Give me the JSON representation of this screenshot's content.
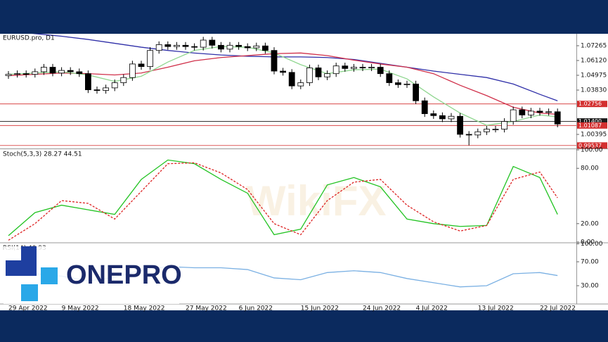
{
  "symbol": "EURUSD.pro, D1",
  "logo": "ONEPRO",
  "watermark": "WikiFX",
  "chart_data": [
    {
      "type": "candlestick",
      "title": "EURUSD.pro, D1",
      "categories": [
        "29 Apr 2022",
        null,
        null,
        null,
        null,
        null,
        "9 May 2022",
        null,
        null,
        null,
        null,
        null,
        null,
        "18 May 2022",
        null,
        null,
        null,
        null,
        null,
        null,
        "27 May 2022",
        null,
        null,
        null,
        null,
        null,
        "6 Jun 2022",
        null,
        null,
        null,
        null,
        null,
        null,
        "15 Jun 2022",
        null,
        null,
        null,
        null,
        null,
        null,
        "24 Jun 2022",
        null,
        null,
        null,
        null,
        null,
        "4 Jul 2022",
        null,
        null,
        null,
        null,
        null,
        null,
        "13 Jul 2022",
        null,
        null,
        null,
        null,
        null,
        null,
        "22 Jul 2022",
        null,
        null
      ],
      "open": [
        1.0495,
        1.0505,
        1.051,
        1.0505,
        1.0525,
        1.056,
        1.0515,
        1.0535,
        1.0525,
        1.051,
        1.0385,
        1.038,
        1.04,
        1.044,
        1.048,
        1.0585,
        1.0565,
        1.069,
        1.0735,
        1.072,
        1.073,
        1.072,
        1.0715,
        1.077,
        1.073,
        1.07,
        1.073,
        1.072,
        1.071,
        1.0725,
        1.069,
        1.053,
        1.052,
        1.0415,
        1.044,
        1.0555,
        1.0485,
        1.051,
        1.057,
        1.055,
        1.056,
        1.0555,
        1.056,
        1.051,
        1.044,
        1.0425,
        1.043,
        1.03,
        1.02,
        1.0185,
        1.016,
        1.018,
        1.004,
        1.0035,
        1.006,
        1.008,
        1.008,
        1.014,
        1.023,
        1.019,
        1.022,
        1.021,
        1.0215
      ],
      "high": [
        1.053,
        1.0535,
        1.0535,
        1.055,
        1.0585,
        1.0585,
        1.056,
        1.056,
        1.055,
        1.0535,
        1.041,
        1.0425,
        1.0465,
        1.0505,
        1.061,
        1.061,
        1.0715,
        1.076,
        1.076,
        1.0755,
        1.0755,
        1.0745,
        1.0795,
        1.0795,
        1.0755,
        1.0755,
        1.0755,
        1.0745,
        1.075,
        1.075,
        1.0715,
        1.0555,
        1.0545,
        1.0465,
        1.058,
        1.058,
        1.0535,
        1.0595,
        1.0595,
        1.0585,
        1.0585,
        1.0585,
        1.0585,
        1.0535,
        1.0465,
        1.0455,
        1.0455,
        1.0325,
        1.0225,
        1.021,
        1.0205,
        1.0205,
        1.0065,
        1.0085,
        1.0105,
        1.0105,
        1.0165,
        1.0255,
        1.0255,
        1.0245,
        1.0245,
        1.024,
        1.024
      ],
      "low": [
        1.047,
        1.048,
        1.048,
        1.048,
        1.05,
        1.049,
        1.049,
        1.05,
        1.0485,
        1.036,
        1.0355,
        1.0355,
        1.0375,
        1.0415,
        1.0455,
        1.054,
        1.054,
        1.0665,
        1.0695,
        1.0695,
        1.0695,
        1.069,
        1.069,
        1.0705,
        1.0675,
        1.0675,
        1.0695,
        1.0685,
        1.0685,
        1.0665,
        1.0505,
        1.0495,
        1.039,
        1.039,
        1.0415,
        1.046,
        1.046,
        1.0485,
        1.0525,
        1.0525,
        1.053,
        1.053,
        1.0485,
        1.0415,
        1.04,
        1.04,
        1.0275,
        1.0175,
        1.016,
        1.0135,
        1.0135,
        1.0015,
        0.9955,
        1.001,
        1.0035,
        1.0055,
        1.0055,
        1.0115,
        1.0165,
        1.0165,
        1.0185,
        1.0185,
        1.0095
      ],
      "close": [
        1.0505,
        1.051,
        1.0505,
        1.0525,
        1.056,
        1.0515,
        1.0535,
        1.0525,
        1.051,
        1.0385,
        1.038,
        1.04,
        1.044,
        1.048,
        1.0585,
        1.0565,
        1.069,
        1.0735,
        1.072,
        1.073,
        1.072,
        1.0715,
        1.077,
        1.073,
        1.07,
        1.073,
        1.072,
        1.071,
        1.0725,
        1.069,
        1.053,
        1.052,
        1.0415,
        1.044,
        1.0555,
        1.0485,
        1.051,
        1.057,
        1.055,
        1.056,
        1.0555,
        1.056,
        1.051,
        1.044,
        1.0425,
        1.043,
        1.03,
        1.02,
        1.0185,
        1.016,
        1.018,
        1.004,
        1.0035,
        1.006,
        1.008,
        1.008,
        1.014,
        1.023,
        1.019,
        1.022,
        1.021,
        1.0215,
        1.012
      ],
      "up_color": "#ffffff",
      "down_color": "#000000",
      "series": [
        {
          "color": "#2f2fa8",
          "x": [
            0,
            3,
            6,
            9,
            12,
            15,
            18,
            21,
            24,
            27,
            30,
            33,
            36,
            39,
            42,
            45,
            48,
            51,
            54,
            57,
            60,
            62
          ],
          "values": [
            1.084,
            1.082,
            1.08,
            1.0775,
            1.0745,
            1.0715,
            1.069,
            1.067,
            1.0655,
            1.0645,
            1.064,
            1.064,
            1.0635,
            1.062,
            1.059,
            1.056,
            1.053,
            1.0505,
            1.048,
            1.043,
            1.035,
            1.03
          ]
        },
        {
          "color": "#d0304a",
          "x": [
            0,
            3,
            6,
            9,
            12,
            15,
            18,
            21,
            24,
            27,
            30,
            33,
            36,
            39,
            42,
            45,
            48,
            51,
            54,
            57,
            60,
            62
          ],
          "values": [
            1.0495,
            1.0505,
            1.0515,
            1.051,
            1.05,
            1.0515,
            1.056,
            1.061,
            1.0635,
            1.065,
            1.0665,
            1.067,
            1.065,
            1.0615,
            1.0585,
            1.056,
            1.051,
            1.042,
            1.034,
            1.025,
            1.0205,
            1.0195
          ]
        },
        {
          "color": "#8fd68f",
          "x": [
            0,
            3,
            6,
            9,
            12,
            15,
            18,
            21,
            24,
            27,
            30,
            33,
            36,
            39,
            42,
            45,
            48,
            51,
            54,
            57,
            60,
            62
          ],
          "values": [
            1.0505,
            1.0515,
            1.0525,
            1.05,
            1.045,
            1.049,
            1.06,
            1.069,
            1.072,
            1.0715,
            1.067,
            1.058,
            1.051,
            1.054,
            1.0545,
            1.047,
            1.033,
            1.0205,
            1.011,
            1.014,
            1.019,
            1.0175
          ]
        }
      ],
      "levels": [
        {
          "value": 1.02756,
          "color": "#d32f2f"
        },
        {
          "value": 1.014,
          "label": "1.01400",
          "color": "#1a1a1a"
        },
        {
          "value": 1.01087,
          "color": "#d32f2f"
        },
        {
          "value": 0.99537,
          "color": "#d32f2f"
        }
      ],
      "ylim": [
        0.9936,
        1.0819
      ],
      "yticks": [
        1.07265,
        {
          "value": 1.0612,
          "label": "1.06120"
        },
        1.04975,
        {
          "value": 1.0383,
          "label": "1.03830"
        },
        1.00395
      ]
    },
    {
      "type": "line",
      "title": "Stoch(5,3,3) 28.27 44.51",
      "series": [
        {
          "color": "#22c322",
          "x": [
            0,
            3,
            6,
            9,
            12,
            15,
            18,
            21,
            24,
            27,
            30,
            33,
            36,
            39,
            42,
            45,
            48,
            51,
            54,
            57,
            60,
            62
          ],
          "values": [
            7,
            32,
            40,
            35,
            30,
            68,
            89,
            85,
            68,
            53,
            8,
            14,
            62,
            70,
            60,
            25,
            20,
            17,
            18,
            82,
            70,
            30
          ]
        },
        {
          "color": "#dd2222",
          "dashed": true,
          "x": [
            0,
            3,
            6,
            9,
            12,
            15,
            18,
            21,
            24,
            27,
            30,
            33,
            36,
            39,
            42,
            45,
            48,
            51,
            54,
            57,
            60,
            62
          ],
          "values": [
            2,
            20,
            45,
            42,
            25,
            55,
            85,
            86,
            75,
            57,
            20,
            8,
            45,
            65,
            68,
            40,
            22,
            12,
            18,
            68,
            76,
            48
          ]
        }
      ],
      "ylim": [
        0,
        100
      ],
      "yticks": [
        {
          "value": 100,
          "label": "100.00"
        },
        {
          "value": 80,
          "label": "80.00"
        },
        {
          "value": 20,
          "label": "20.00"
        },
        {
          "value": 0,
          "label": "0.00"
        }
      ]
    },
    {
      "type": "line",
      "title": "RSI(14) 40.93",
      "series": [
        {
          "color": "#7ab0e3",
          "x": [
            0,
            3,
            6,
            9,
            12,
            15,
            18,
            21,
            24,
            27,
            30,
            33,
            36,
            39,
            42,
            45,
            48,
            51,
            54,
            57,
            60,
            62
          ],
          "values": [
            48,
            50,
            46,
            38,
            44,
            56,
            62,
            60,
            60,
            57,
            43,
            40,
            52,
            55,
            52,
            42,
            35,
            28,
            30,
            50,
            52,
            47
          ]
        }
      ],
      "ylim": [
        0,
        100
      ],
      "yticks": [
        {
          "value": 100,
          "label": "100.00"
        },
        {
          "value": 70,
          "label": "70.00"
        },
        {
          "value": 30,
          "label": "30.00"
        }
      ]
    }
  ]
}
